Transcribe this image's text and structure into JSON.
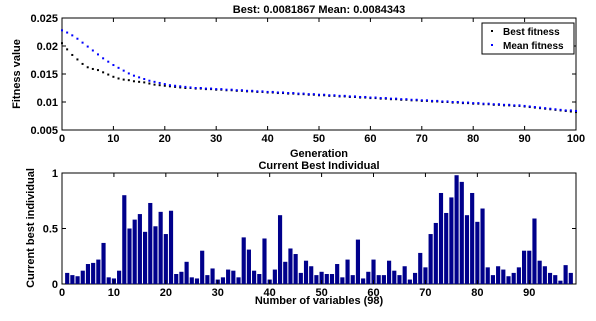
{
  "chart_data": [
    {
      "type": "scatter",
      "title": "Best: 0.0081867 Mean: 0.0084343",
      "xlabel": "Generation",
      "ylabel": "Fitness value",
      "xlim": [
        0,
        100
      ],
      "ylim": [
        0.005,
        0.025
      ],
      "xticks": [
        0,
        10,
        20,
        30,
        40,
        50,
        60,
        70,
        80,
        90,
        100
      ],
      "yticks": [
        0.005,
        0.01,
        0.015,
        0.02,
        0.025
      ],
      "ytick_labels": [
        "0.005",
        "0.01",
        "0.015",
        "0.02",
        "0.025"
      ],
      "grid": false,
      "legend_position": "top-right",
      "series": [
        {
          "name": "Best fitness",
          "color": "#000000",
          "x": [
            0,
            1,
            2,
            3,
            4,
            5,
            6,
            7,
            8,
            9,
            10,
            11,
            12,
            13,
            14,
            15,
            16,
            17,
            18,
            19,
            20,
            21,
            22,
            23,
            24,
            25,
            26,
            27,
            28,
            29,
            30,
            31,
            32,
            33,
            34,
            35,
            36,
            37,
            38,
            39,
            40,
            41,
            42,
            43,
            44,
            45,
            46,
            47,
            48,
            49,
            50,
            51,
            52,
            53,
            54,
            55,
            56,
            57,
            58,
            59,
            60,
            61,
            62,
            63,
            64,
            65,
            66,
            67,
            68,
            69,
            70,
            71,
            72,
            73,
            74,
            75,
            76,
            77,
            78,
            79,
            80,
            81,
            82,
            83,
            84,
            85,
            86,
            87,
            88,
            89,
            90,
            91,
            92,
            93,
            94,
            95,
            96,
            97,
            98,
            99,
            100
          ],
          "y": [
            0.0205,
            0.0194,
            0.0184,
            0.0176,
            0.0168,
            0.0162,
            0.0159,
            0.0157,
            0.0153,
            0.0149,
            0.0145,
            0.0142,
            0.014,
            0.0139,
            0.0137,
            0.0136,
            0.0135,
            0.0133,
            0.0131,
            0.013,
            0.0129,
            0.0128,
            0.0127,
            0.0126,
            0.0125,
            0.0125,
            0.0124,
            0.0124,
            0.0123,
            0.0123,
            0.0122,
            0.0122,
            0.0121,
            0.0121,
            0.012,
            0.012,
            0.0119,
            0.0119,
            0.0118,
            0.0118,
            0.0117,
            0.0117,
            0.0116,
            0.0116,
            0.0115,
            0.0115,
            0.0114,
            0.0114,
            0.0113,
            0.0113,
            0.0112,
            0.0112,
            0.0111,
            0.0111,
            0.011,
            0.011,
            0.0109,
            0.0109,
            0.0108,
            0.0108,
            0.0107,
            0.0107,
            0.0106,
            0.0106,
            0.0105,
            0.0105,
            0.0104,
            0.0104,
            0.0103,
            0.0103,
            0.0102,
            0.0102,
            0.0101,
            0.0101,
            0.01,
            0.01,
            0.0099,
            0.0099,
            0.0098,
            0.0098,
            0.0097,
            0.0097,
            0.0096,
            0.0096,
            0.0095,
            0.0095,
            0.0094,
            0.0094,
            0.0093,
            0.0093,
            0.0092,
            0.0091,
            0.009,
            0.0089,
            0.0088,
            0.0087,
            0.0086,
            0.0085,
            0.0084,
            0.0083,
            0.0082
          ]
        },
        {
          "name": "Mean fitness",
          "color": "#0000ff",
          "x": [
            0,
            1,
            2,
            3,
            4,
            5,
            6,
            7,
            8,
            9,
            10,
            11,
            12,
            13,
            14,
            15,
            16,
            17,
            18,
            19,
            20,
            21,
            22,
            23,
            24,
            25,
            26,
            27,
            28,
            29,
            30,
            31,
            32,
            33,
            34,
            35,
            36,
            37,
            38,
            39,
            40,
            41,
            42,
            43,
            44,
            45,
            46,
            47,
            48,
            49,
            50,
            51,
            52,
            53,
            54,
            55,
            56,
            57,
            58,
            59,
            60,
            61,
            62,
            63,
            64,
            65,
            66,
            67,
            68,
            69,
            70,
            71,
            72,
            73,
            74,
            75,
            76,
            77,
            78,
            79,
            80,
            81,
            82,
            83,
            84,
            85,
            86,
            87,
            88,
            89,
            90,
            91,
            92,
            93,
            94,
            95,
            96,
            97,
            98,
            99,
            100
          ],
          "y": [
            0.0228,
            0.0224,
            0.0219,
            0.0213,
            0.0206,
            0.0199,
            0.0192,
            0.0185,
            0.0178,
            0.0172,
            0.0166,
            0.0161,
            0.0156,
            0.0151,
            0.0147,
            0.0144,
            0.0141,
            0.0138,
            0.0136,
            0.0134,
            0.0132,
            0.013,
            0.0129,
            0.0128,
            0.0127,
            0.0126,
            0.0125,
            0.0125,
            0.0124,
            0.0124,
            0.0123,
            0.0123,
            0.0122,
            0.0122,
            0.0121,
            0.0121,
            0.012,
            0.012,
            0.0119,
            0.0119,
            0.0118,
            0.0118,
            0.0117,
            0.0117,
            0.0116,
            0.0116,
            0.0115,
            0.0115,
            0.0114,
            0.0114,
            0.0113,
            0.0113,
            0.0112,
            0.0112,
            0.0111,
            0.0111,
            0.011,
            0.011,
            0.0109,
            0.0109,
            0.0108,
            0.0108,
            0.0107,
            0.0107,
            0.0106,
            0.0106,
            0.0105,
            0.0105,
            0.0104,
            0.0104,
            0.0103,
            0.0103,
            0.0102,
            0.0102,
            0.0101,
            0.0101,
            0.01,
            0.01,
            0.0099,
            0.0099,
            0.0098,
            0.0098,
            0.0097,
            0.0097,
            0.0096,
            0.0096,
            0.0095,
            0.0095,
            0.0094,
            0.0094,
            0.0093,
            0.0092,
            0.0091,
            0.009,
            0.0089,
            0.0088,
            0.0087,
            0.0086,
            0.0085,
            0.0085,
            0.0084
          ]
        }
      ]
    },
    {
      "type": "bar",
      "title": "Current Best Individual",
      "xlabel": "Number of variables (98)",
      "ylabel": "Current best individual",
      "xlim": [
        0,
        99
      ],
      "ylim": [
        0,
        1
      ],
      "xticks": [
        0,
        10,
        20,
        30,
        40,
        50,
        60,
        70,
        80,
        90
      ],
      "yticks": [
        0,
        0.5,
        1
      ],
      "ytick_labels": [
        "0",
        "0.5",
        "1"
      ],
      "grid": false,
      "bar_color": "#00008b",
      "categories": [
        1,
        2,
        3,
        4,
        5,
        6,
        7,
        8,
        9,
        10,
        11,
        12,
        13,
        14,
        15,
        16,
        17,
        18,
        19,
        20,
        21,
        22,
        23,
        24,
        25,
        26,
        27,
        28,
        29,
        30,
        31,
        32,
        33,
        34,
        35,
        36,
        37,
        38,
        39,
        40,
        41,
        42,
        43,
        44,
        45,
        46,
        47,
        48,
        49,
        50,
        51,
        52,
        53,
        54,
        55,
        56,
        57,
        58,
        59,
        60,
        61,
        62,
        63,
        64,
        65,
        66,
        67,
        68,
        69,
        70,
        71,
        72,
        73,
        74,
        75,
        76,
        77,
        78,
        79,
        80,
        81,
        82,
        83,
        84,
        85,
        86,
        87,
        88,
        89,
        90,
        91,
        92,
        93,
        94,
        95,
        96,
        97,
        98
      ],
      "values": [
        0.1,
        0.08,
        0.07,
        0.12,
        0.18,
        0.19,
        0.22,
        0.37,
        0.06,
        0.05,
        0.12,
        0.8,
        0.5,
        0.58,
        0.63,
        0.47,
        0.73,
        0.52,
        0.65,
        0.45,
        0.66,
        0.09,
        0.11,
        0.2,
        0.06,
        0.05,
        0.3,
        0.08,
        0.14,
        0.04,
        0.06,
        0.13,
        0.12,
        0.06,
        0.42,
        0.31,
        0.12,
        0.09,
        0.41,
        0.04,
        0.13,
        0.62,
        0.2,
        0.32,
        0.27,
        0.1,
        0.21,
        0.16,
        0.08,
        0.11,
        0.09,
        0.09,
        0.18,
        0.06,
        0.22,
        0.08,
        0.4,
        0.05,
        0.11,
        0.22,
        0.08,
        0.08,
        0.21,
        0.12,
        0.08,
        0.16,
        0.04,
        0.1,
        0.28,
        0.15,
        0.45,
        0.55,
        0.82,
        0.64,
        0.78,
        0.98,
        0.92,
        0.62,
        0.82,
        0.56,
        0.68,
        0.15,
        0.08,
        0.16,
        0.13,
        0.07,
        0.1,
        0.15,
        0.3,
        0.3,
        0.59,
        0.21,
        0.16,
        0.1,
        0.08,
        0.03,
        0.17,
        0.1
      ]
    }
  ]
}
